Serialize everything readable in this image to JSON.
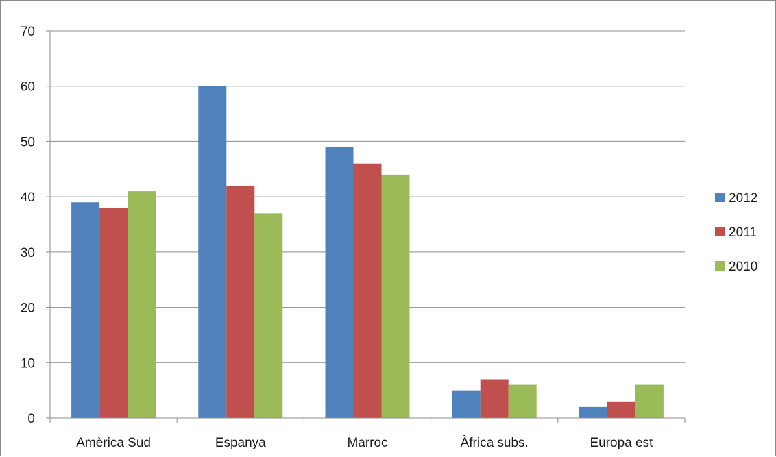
{
  "chart_data": {
    "type": "bar",
    "title": "",
    "xlabel": "",
    "ylabel": "",
    "categories": [
      "Amèrica Sud",
      "Espanya",
      "Marroc",
      "Àfrica subs.",
      "Europa est"
    ],
    "series": [
      {
        "name": "2012",
        "color": "#4f81bd",
        "values": [
          39,
          60,
          49,
          5,
          2
        ]
      },
      {
        "name": "2011",
        "color": "#c0504d",
        "values": [
          38,
          42,
          46,
          7,
          3
        ]
      },
      {
        "name": "2010",
        "color": "#9bbb59",
        "values": [
          41,
          37,
          44,
          6,
          6
        ]
      }
    ],
    "ylim": [
      0,
      70
    ],
    "yticks": [
      "0",
      "10",
      "20",
      "30",
      "40",
      "50",
      "60",
      "70"
    ],
    "grid": true,
    "legend_position": "right"
  }
}
